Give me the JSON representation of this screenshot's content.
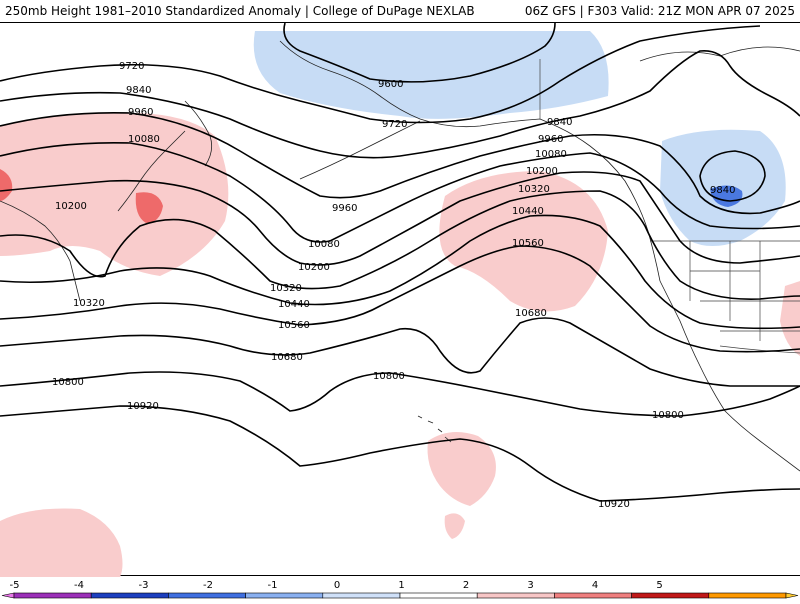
{
  "header": {
    "left_text": "250mb Height 1981–2010 Standardized Anomaly | College of DuPage NEXLAB",
    "right_text": "06Z GFS | F303 Valid: 21Z MON APR 07 2025"
  },
  "contour_labels": [
    {
      "id": "c9600",
      "text": "9600"
    },
    {
      "id": "c9720a",
      "text": "9720"
    },
    {
      "id": "c9720b",
      "text": "9720"
    },
    {
      "id": "c9840a",
      "text": "9840"
    },
    {
      "id": "c9840b",
      "text": "9840"
    },
    {
      "id": "c9840c",
      "text": "9840"
    },
    {
      "id": "c9960a",
      "text": "9960"
    },
    {
      "id": "c9960b",
      "text": "9960"
    },
    {
      "id": "c9960c",
      "text": "9960"
    },
    {
      "id": "c10080a",
      "text": "10080"
    },
    {
      "id": "c10080b",
      "text": "10080"
    },
    {
      "id": "c10080c",
      "text": "10080"
    },
    {
      "id": "c10200a",
      "text": "10200"
    },
    {
      "id": "c10200b",
      "text": "10200"
    },
    {
      "id": "c10200c",
      "text": "10200"
    },
    {
      "id": "c10320a",
      "text": "10320"
    },
    {
      "id": "c10320b",
      "text": "10320"
    },
    {
      "id": "c10320c",
      "text": "10320"
    },
    {
      "id": "c10440a",
      "text": "10440"
    },
    {
      "id": "c10440b",
      "text": "10440"
    },
    {
      "id": "c10560a",
      "text": "10560"
    },
    {
      "id": "c10560b",
      "text": "10560"
    },
    {
      "id": "c10680a",
      "text": "10680"
    },
    {
      "id": "c10680b",
      "text": "10680"
    },
    {
      "id": "c10800a",
      "text": "10800"
    },
    {
      "id": "c10800b",
      "text": "10800"
    },
    {
      "id": "c10800c",
      "text": "10800"
    },
    {
      "id": "c10920a",
      "text": "10920"
    },
    {
      "id": "c10920b",
      "text": "10920"
    }
  ],
  "colorbar": {
    "ticks": [
      "-5",
      "-4",
      "-3",
      "-2",
      "-1",
      "0",
      "1",
      "2",
      "3",
      "4",
      "5"
    ],
    "colors": [
      "#9b2fb8",
      "#1c3fbf",
      "#3f6fe0",
      "#8ab0f0",
      "#cfe0f8",
      "#ffffff",
      "#ffffff",
      "#f7c6c6",
      "#ef7f7f",
      "#c01818",
      "#ff9900"
    ],
    "arrow_left_color": "#e878e8",
    "arrow_right_color": "#ffcc33"
  },
  "anomaly_colors": {
    "neg_light": "#c7dcf5",
    "neg_medium": "#4a78e0",
    "pos_light": "#f9cccc",
    "pos_medium": "#ee6a6a"
  }
}
